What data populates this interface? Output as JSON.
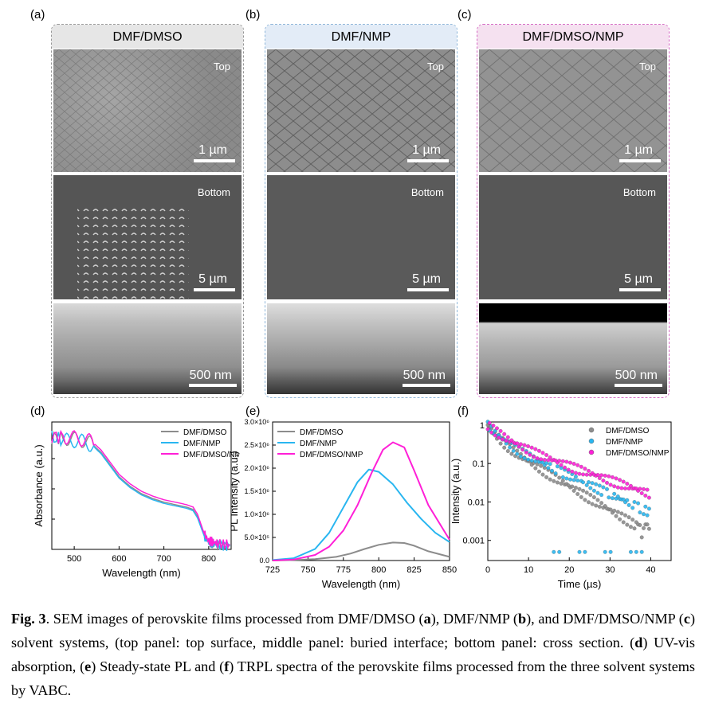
{
  "panels": {
    "a": {
      "letter": "(a)",
      "title": "DMF/DMSO",
      "top_label": "Top",
      "top_scale": "1 µm",
      "bottom_label": "Bottom",
      "bottom_scale": "5 µm",
      "cross_scale": "500 nm",
      "head_color": "#e6e6e6",
      "border_color": "#a0a0a0"
    },
    "b": {
      "letter": "(b)",
      "title": "DMF/NMP",
      "top_label": "Top",
      "top_scale": "1 µm",
      "bottom_label": "Bottom",
      "bottom_scale": "5 µm",
      "cross_scale": "500 nm",
      "head_color": "#e3ecf7",
      "border_color": "#8fb6d9"
    },
    "c": {
      "letter": "(c)",
      "title": "DMF/DMSO/NMP",
      "top_label": "Top",
      "top_scale": "1 µm",
      "bottom_label": "Bottom",
      "bottom_scale": "5 µm",
      "cross_scale": "500 nm",
      "head_color": "#f5e1f0",
      "border_color": "#d56bc4"
    }
  },
  "chart_letters": {
    "d": "(d)",
    "e": "(e)",
    "f": "(f)"
  },
  "series_colors": {
    "DMF/DMSO": "#8c8c8c",
    "DMF/NMP": "#29b6f0",
    "DMF/DMSO/NMP": "#ff1fd7"
  },
  "chart_data": [
    {
      "type": "line",
      "xlabel": "Wavelength (nm)",
      "ylabel": "Absorbance (a.u.)",
      "xlim": [
        450,
        850
      ],
      "xticks": [
        500,
        600,
        700,
        800
      ],
      "legend": [
        "DMF/DMSO",
        "DMF/NMP",
        "DMF/DMSO/NMP"
      ],
      "legend_position": "top-right",
      "series": [
        {
          "name": "DMF/DMSO",
          "x": [
            450,
            480,
            500,
            520,
            540,
            560,
            580,
            600,
            625,
            650,
            675,
            700,
            725,
            750,
            765,
            775,
            790,
            800,
            810,
            820,
            835,
            850
          ],
          "y": [
            0.93,
            0.92,
            0.91,
            0.9,
            0.87,
            0.8,
            0.7,
            0.6,
            0.52,
            0.46,
            0.42,
            0.39,
            0.37,
            0.35,
            0.33,
            0.27,
            0.12,
            0.06,
            0.05,
            0.04,
            0.03,
            0.03
          ]
        },
        {
          "name": "DMF/NMP",
          "x": [
            450,
            480,
            500,
            520,
            540,
            560,
            580,
            600,
            625,
            650,
            675,
            700,
            725,
            750,
            765,
            775,
            790,
            800,
            810,
            820,
            835,
            850
          ],
          "y": [
            0.92,
            0.9,
            0.9,
            0.89,
            0.86,
            0.79,
            0.69,
            0.59,
            0.51,
            0.45,
            0.41,
            0.38,
            0.36,
            0.34,
            0.32,
            0.26,
            0.11,
            0.06,
            0.05,
            0.04,
            0.03,
            0.03
          ]
        },
        {
          "name": "DMF/DMSO/NMP",
          "x": [
            450,
            480,
            500,
            520,
            540,
            560,
            580,
            600,
            625,
            650,
            675,
            700,
            725,
            750,
            765,
            775,
            790,
            800,
            810,
            820,
            835,
            850
          ],
          "y": [
            0.94,
            0.93,
            0.92,
            0.91,
            0.89,
            0.82,
            0.72,
            0.62,
            0.54,
            0.48,
            0.44,
            0.41,
            0.39,
            0.37,
            0.35,
            0.29,
            0.13,
            0.07,
            0.06,
            0.05,
            0.04,
            0.04
          ]
        }
      ]
    },
    {
      "type": "line",
      "xlabel": "Wavelength (nm)",
      "ylabel": "PL Intensity (a.u.)",
      "xlim": [
        725,
        850
      ],
      "ylim": [
        0,
        3000000
      ],
      "xticks": [
        725,
        750,
        775,
        800,
        825,
        850
      ],
      "yticks": [
        0,
        500000,
        1000000,
        1500000,
        2000000,
        2500000,
        3000000
      ],
      "ytick_labels": [
        "0.0",
        "5.0×10⁵",
        "1.0×10⁶",
        "1.5×10⁶",
        "2.0×10⁶",
        "2.5×10⁶",
        "3.0×10⁶"
      ],
      "legend": [
        "DMF/DMSO",
        "DMF/NMP",
        "DMF/DMSO/NMP"
      ],
      "legend_position": "top-left",
      "series": [
        {
          "name": "DMF/DMSO",
          "x": [
            725,
            740,
            755,
            770,
            780,
            790,
            800,
            810,
            818,
            825,
            835,
            850
          ],
          "y": [
            0,
            10000,
            30000,
            80000,
            150000,
            250000,
            340000,
            390000,
            380000,
            320000,
            200000,
            80000
          ]
        },
        {
          "name": "DMF/NMP",
          "x": [
            725,
            740,
            755,
            765,
            775,
            785,
            793,
            800,
            810,
            820,
            830,
            840,
            850
          ],
          "y": [
            10000,
            50000,
            250000,
            600000,
            1150000,
            1700000,
            1970000,
            1920000,
            1650000,
            1250000,
            900000,
            600000,
            400000
          ]
        },
        {
          "name": "DMF/DMSO/NMP",
          "x": [
            725,
            740,
            755,
            765,
            775,
            785,
            795,
            803,
            810,
            818,
            825,
            835,
            850
          ],
          "y": [
            0,
            20000,
            120000,
            300000,
            650000,
            1200000,
            1900000,
            2400000,
            2560000,
            2450000,
            1950000,
            1200000,
            450000
          ]
        }
      ]
    },
    {
      "type": "scatter",
      "xlabel": "Time (µs)",
      "ylabel": "Intensity (a.u.)",
      "xlim": [
        0,
        45
      ],
      "ylim": [
        0.0003,
        1.2
      ],
      "yscale": "log",
      "xticks": [
        0,
        10,
        20,
        30,
        40
      ],
      "yticks": [
        0.001,
        0.01,
        0.1,
        1
      ],
      "ytick_labels": [
        "0.001",
        "0.01",
        "0.1",
        "1"
      ],
      "legend": [
        "DMF/DMSO",
        "DMF/NMP",
        "DMF/DMSO/NMP"
      ],
      "legend_position": "top-right",
      "series": [
        {
          "name": "DMF/DMSO",
          "tau": [
            2.2,
            7
          ],
          "floor": 0.002
        },
        {
          "name": "DMF/NMP",
          "tau": [
            2.5,
            9
          ],
          "floor": 0.0025
        },
        {
          "name": "DMF/DMSO/NMP",
          "tau": [
            3.5,
            12
          ],
          "floor": 0.004
        }
      ]
    }
  ],
  "caption": {
    "fig": "Fig. 3",
    "t1": ". SEM images of perovskite films processed from DMF/DMSO (",
    "a": "a",
    "t2": "), DMF/NMP (",
    "b": "b",
    "t3": "), and DMF/DMSO/NMP (",
    "c": "c",
    "t4": ") solvent systems, (top panel: top surface, middle panel: buried interface; bottom panel: cross section. (",
    "d": "d",
    "t5": ") UV-vis absorption, (",
    "e": "e",
    "t6": ") Steady-state PL and (",
    "f": "f",
    "t7": ") TRPL spectra of the perovskite films processed from the three solvent systems by VABC."
  }
}
